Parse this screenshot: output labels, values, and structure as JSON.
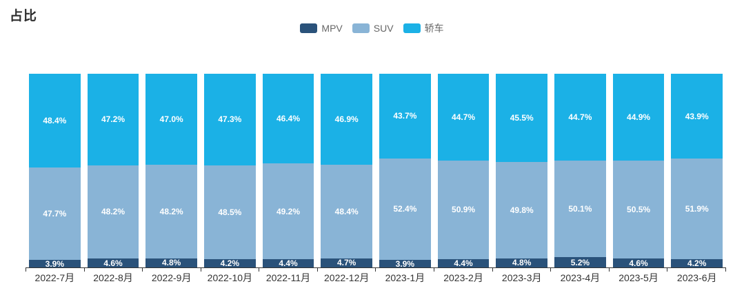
{
  "title": "占比",
  "chart_data": {
    "type": "bar",
    "stacked": true,
    "title": "占比",
    "xlabel": "",
    "ylabel": "",
    "ylim": [
      0,
      100
    ],
    "grid": false,
    "legend_position": "top-center",
    "value_suffix": "%",
    "categories": [
      "2022-7月",
      "2022-8月",
      "2022-9月",
      "2022-10月",
      "2022-11月",
      "2022-12月",
      "2023-1月",
      "2023-2月",
      "2023-3月",
      "2023-4月",
      "2023-5月",
      "2023-6月"
    ],
    "series": [
      {
        "name": "MPV",
        "color": "#2A527A",
        "values": [
          3.9,
          4.6,
          4.8,
          4.2,
          4.4,
          4.7,
          3.9,
          4.4,
          4.8,
          5.2,
          4.6,
          4.2
        ]
      },
      {
        "name": "SUV",
        "color": "#89B4D6",
        "values": [
          47.7,
          48.2,
          48.2,
          48.5,
          49.2,
          48.4,
          52.4,
          50.9,
          49.8,
          50.1,
          50.5,
          51.9
        ]
      },
      {
        "name": "轿车",
        "color": "#1BB1E6",
        "values": [
          48.4,
          47.2,
          47.0,
          47.3,
          46.4,
          46.9,
          43.7,
          44.7,
          45.5,
          44.7,
          44.9,
          43.9
        ]
      }
    ]
  }
}
